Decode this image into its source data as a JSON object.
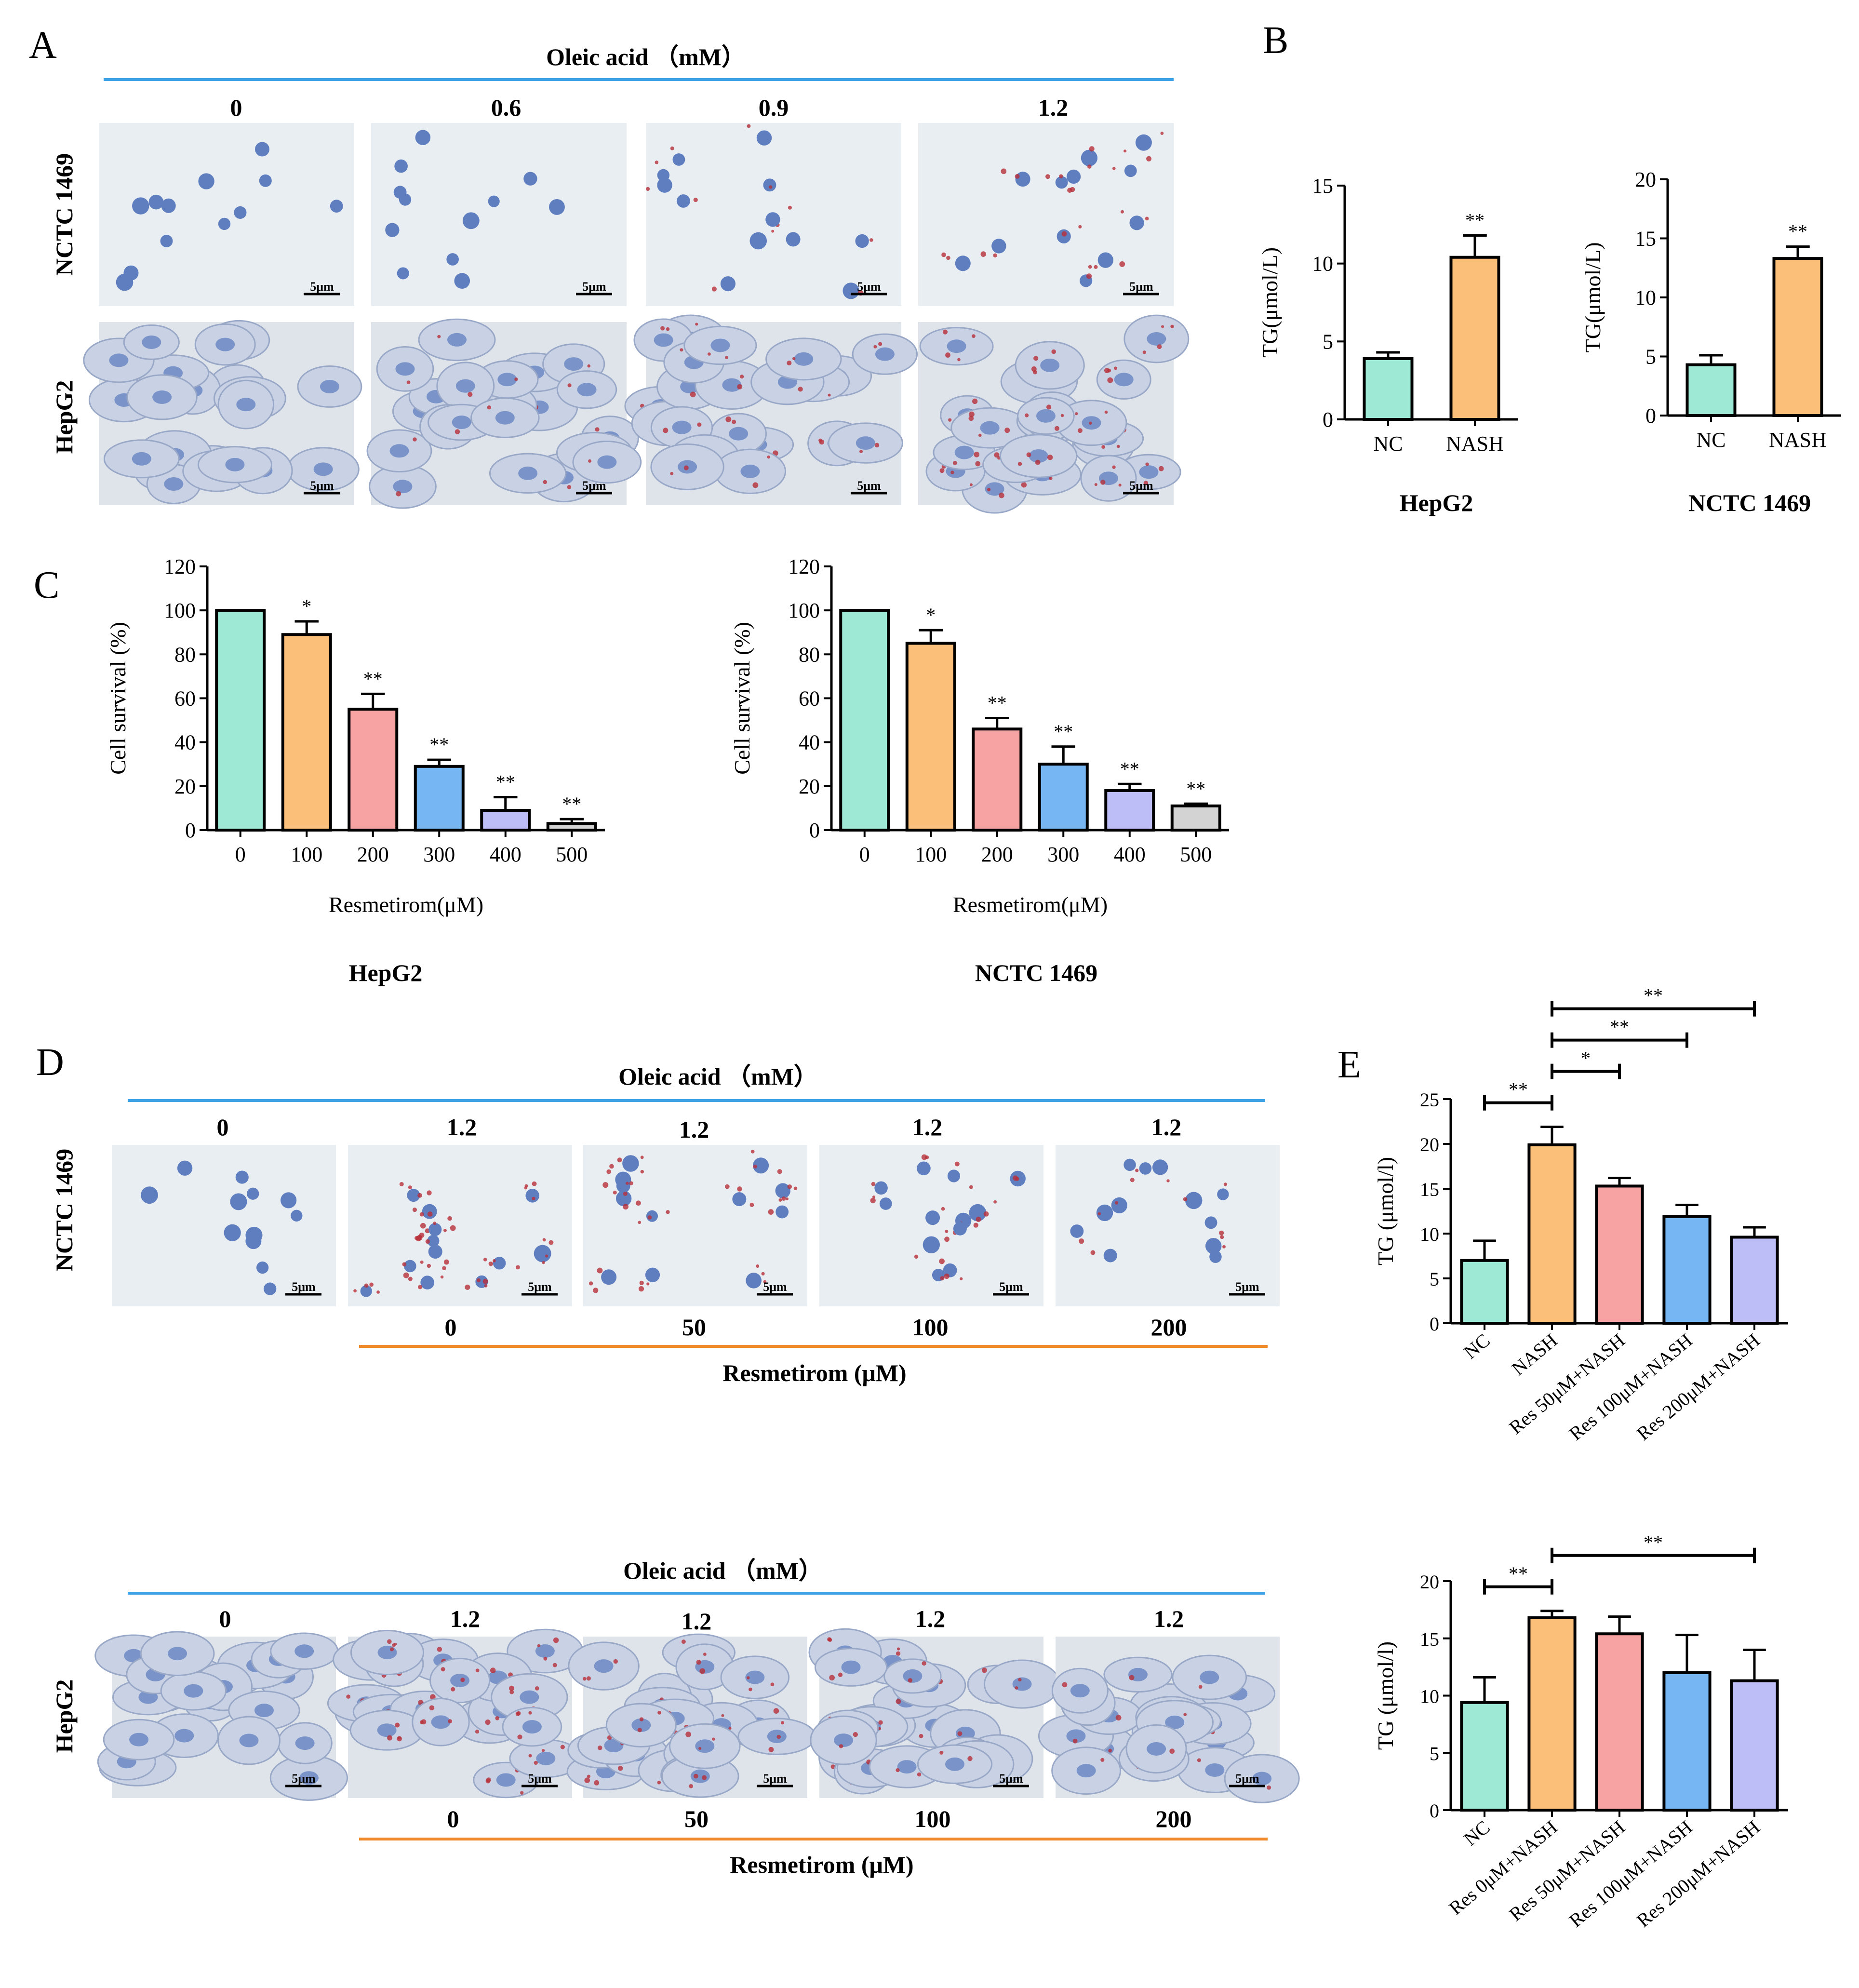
{
  "panels": {
    "A": {
      "letter": "A",
      "header": "Oleic acid （mM）",
      "columns": [
        "0",
        "0.6",
        "0.9",
        "1.2"
      ],
      "rows": [
        "NCTC 1469",
        "HepG2"
      ],
      "scale_bar": "5μm"
    },
    "B": {
      "letter": "B",
      "charts": [
        {
          "title": "HepG2",
          "ylabel": "TG(μmol/L)"
        },
        {
          "title": "NCTC 1469",
          "ylabel": "TG(μmol/L)"
        }
      ]
    },
    "C": {
      "letter": "C",
      "charts": [
        {
          "title": "HepG2",
          "xlabel": "Resmetirom(μM)",
          "ylabel": "Cell survival (%)"
        },
        {
          "title": "NCTC 1469",
          "xlabel": "Resmetirom(μM)",
          "ylabel": "Cell survival (%)"
        }
      ]
    },
    "D": {
      "letter": "D",
      "blocks": [
        {
          "row": "NCTC 1469",
          "header": "Oleic acid （mM）",
          "oa": [
            "0",
            "1.2",
            "1.2",
            "1.2",
            "1.2"
          ],
          "res": [
            "0",
            "50",
            "100",
            "200"
          ],
          "footer": "Resmetirom (μM)"
        },
        {
          "row": "HepG2",
          "header": "Oleic acid （mM）",
          "oa": [
            "0",
            "1.2",
            "1.2",
            "1.2",
            "1.2"
          ],
          "res": [
            "0",
            "50",
            "100",
            "200"
          ],
          "footer": "Resmetirom (μM)"
        }
      ],
      "scale_bar": "5μm"
    },
    "E": {
      "letter": "E",
      "charts": [
        {
          "ylabel": "TG (μmol/l)"
        },
        {
          "ylabel": "TG (μmol/l)"
        }
      ]
    }
  },
  "colors": {
    "teal": "#9ee8d6",
    "orange": "#fbbf7a",
    "pink": "#f8a3a3",
    "blue": "#76b6f2",
    "lavender": "#bdbdf7",
    "gray": "#d3d3d3",
    "blue_line": "#3ea3e6",
    "orange_line": "#f0892a",
    "stain_blue": "#5f7ec0",
    "stain_red": "#b8303a",
    "bg_cyto": "#e9eef2"
  },
  "chart_data": [
    {
      "id": "B-HepG2",
      "type": "bar",
      "categories": [
        "NC",
        "NASH"
      ],
      "values": [
        3.9,
        10.4
      ],
      "errors": [
        0.4,
        1.4
      ],
      "significance": [
        "",
        "**"
      ],
      "ylim": [
        0,
        15
      ],
      "yticks": [
        0,
        5,
        10,
        15
      ],
      "title": "HepG2",
      "ylabel": "TG(μmol/L)",
      "xlabel": ""
    },
    {
      "id": "B-NCTC1469",
      "type": "bar",
      "categories": [
        "NC",
        "NASH"
      ],
      "values": [
        4.3,
        13.3
      ],
      "errors": [
        0.8,
        1.0
      ],
      "significance": [
        "",
        "**"
      ],
      "ylim": [
        0,
        20
      ],
      "yticks": [
        0,
        5,
        10,
        15,
        20
      ],
      "title": "NCTC 1469",
      "ylabel": "TG(μmol/L)",
      "xlabel": ""
    },
    {
      "id": "C-HepG2",
      "type": "bar",
      "categories": [
        "0",
        "100",
        "200",
        "300",
        "400",
        "500"
      ],
      "values": [
        100,
        89,
        55,
        29,
        9,
        3
      ],
      "errors": [
        0,
        6,
        7,
        3,
        6,
        2
      ],
      "significance": [
        "",
        "*",
        "**",
        "**",
        "**",
        "**"
      ],
      "ylim": [
        0,
        120
      ],
      "yticks": [
        0,
        20,
        40,
        60,
        80,
        100,
        120
      ],
      "title": "HepG2",
      "xlabel": "Resmetirom(μM)",
      "ylabel": "Cell survival (%)"
    },
    {
      "id": "C-NCTC1469",
      "type": "bar",
      "categories": [
        "0",
        "100",
        "200",
        "300",
        "400",
        "500"
      ],
      "values": [
        100,
        85,
        46,
        30,
        18,
        11
      ],
      "errors": [
        0,
        6,
        5,
        8,
        3,
        1
      ],
      "significance": [
        "",
        "*",
        "**",
        "**",
        "**",
        "**"
      ],
      "ylim": [
        0,
        120
      ],
      "yticks": [
        0,
        20,
        40,
        60,
        80,
        100,
        120
      ],
      "title": "NCTC 1469",
      "xlabel": "Resmetirom(μM)",
      "ylabel": "Cell survival (%)"
    },
    {
      "id": "E-top",
      "type": "bar",
      "categories": [
        "NC",
        "NASH",
        "Res 50μM+NASH",
        "Res 100μM+NASH",
        "Res 200μM+NASH"
      ],
      "values": [
        7.0,
        19.9,
        15.3,
        11.9,
        9.6
      ],
      "errors": [
        2.2,
        2.0,
        0.9,
        1.3,
        1.1
      ],
      "ylim": [
        0,
        25
      ],
      "yticks": [
        0,
        5,
        10,
        15,
        20,
        25
      ],
      "ylabel": "TG (μmol/l)",
      "xlabel": "",
      "brackets": [
        {
          "from": 0,
          "to": 1,
          "label": "**"
        },
        {
          "from": 1,
          "to": 2,
          "label": "*"
        },
        {
          "from": 1,
          "to": 3,
          "label": "**"
        },
        {
          "from": 1,
          "to": 4,
          "label": "**"
        }
      ]
    },
    {
      "id": "E-bottom",
      "type": "bar",
      "categories": [
        "NC",
        "Res 0μM+NASH",
        "Res 50μM+NASH",
        "Res 100μM+NASH",
        "Res 200μM+NASH"
      ],
      "values": [
        9.4,
        16.8,
        15.4,
        12.0,
        11.3
      ],
      "errors": [
        2.2,
        0.6,
        1.5,
        3.3,
        2.7
      ],
      "ylim": [
        0,
        20
      ],
      "yticks": [
        0,
        5,
        10,
        15,
        20
      ],
      "ylabel": "TG (μmol/l)",
      "xlabel": "",
      "brackets": [
        {
          "from": 0,
          "to": 1,
          "label": "**"
        },
        {
          "from": 1,
          "to": 4,
          "label": "**"
        }
      ]
    }
  ]
}
